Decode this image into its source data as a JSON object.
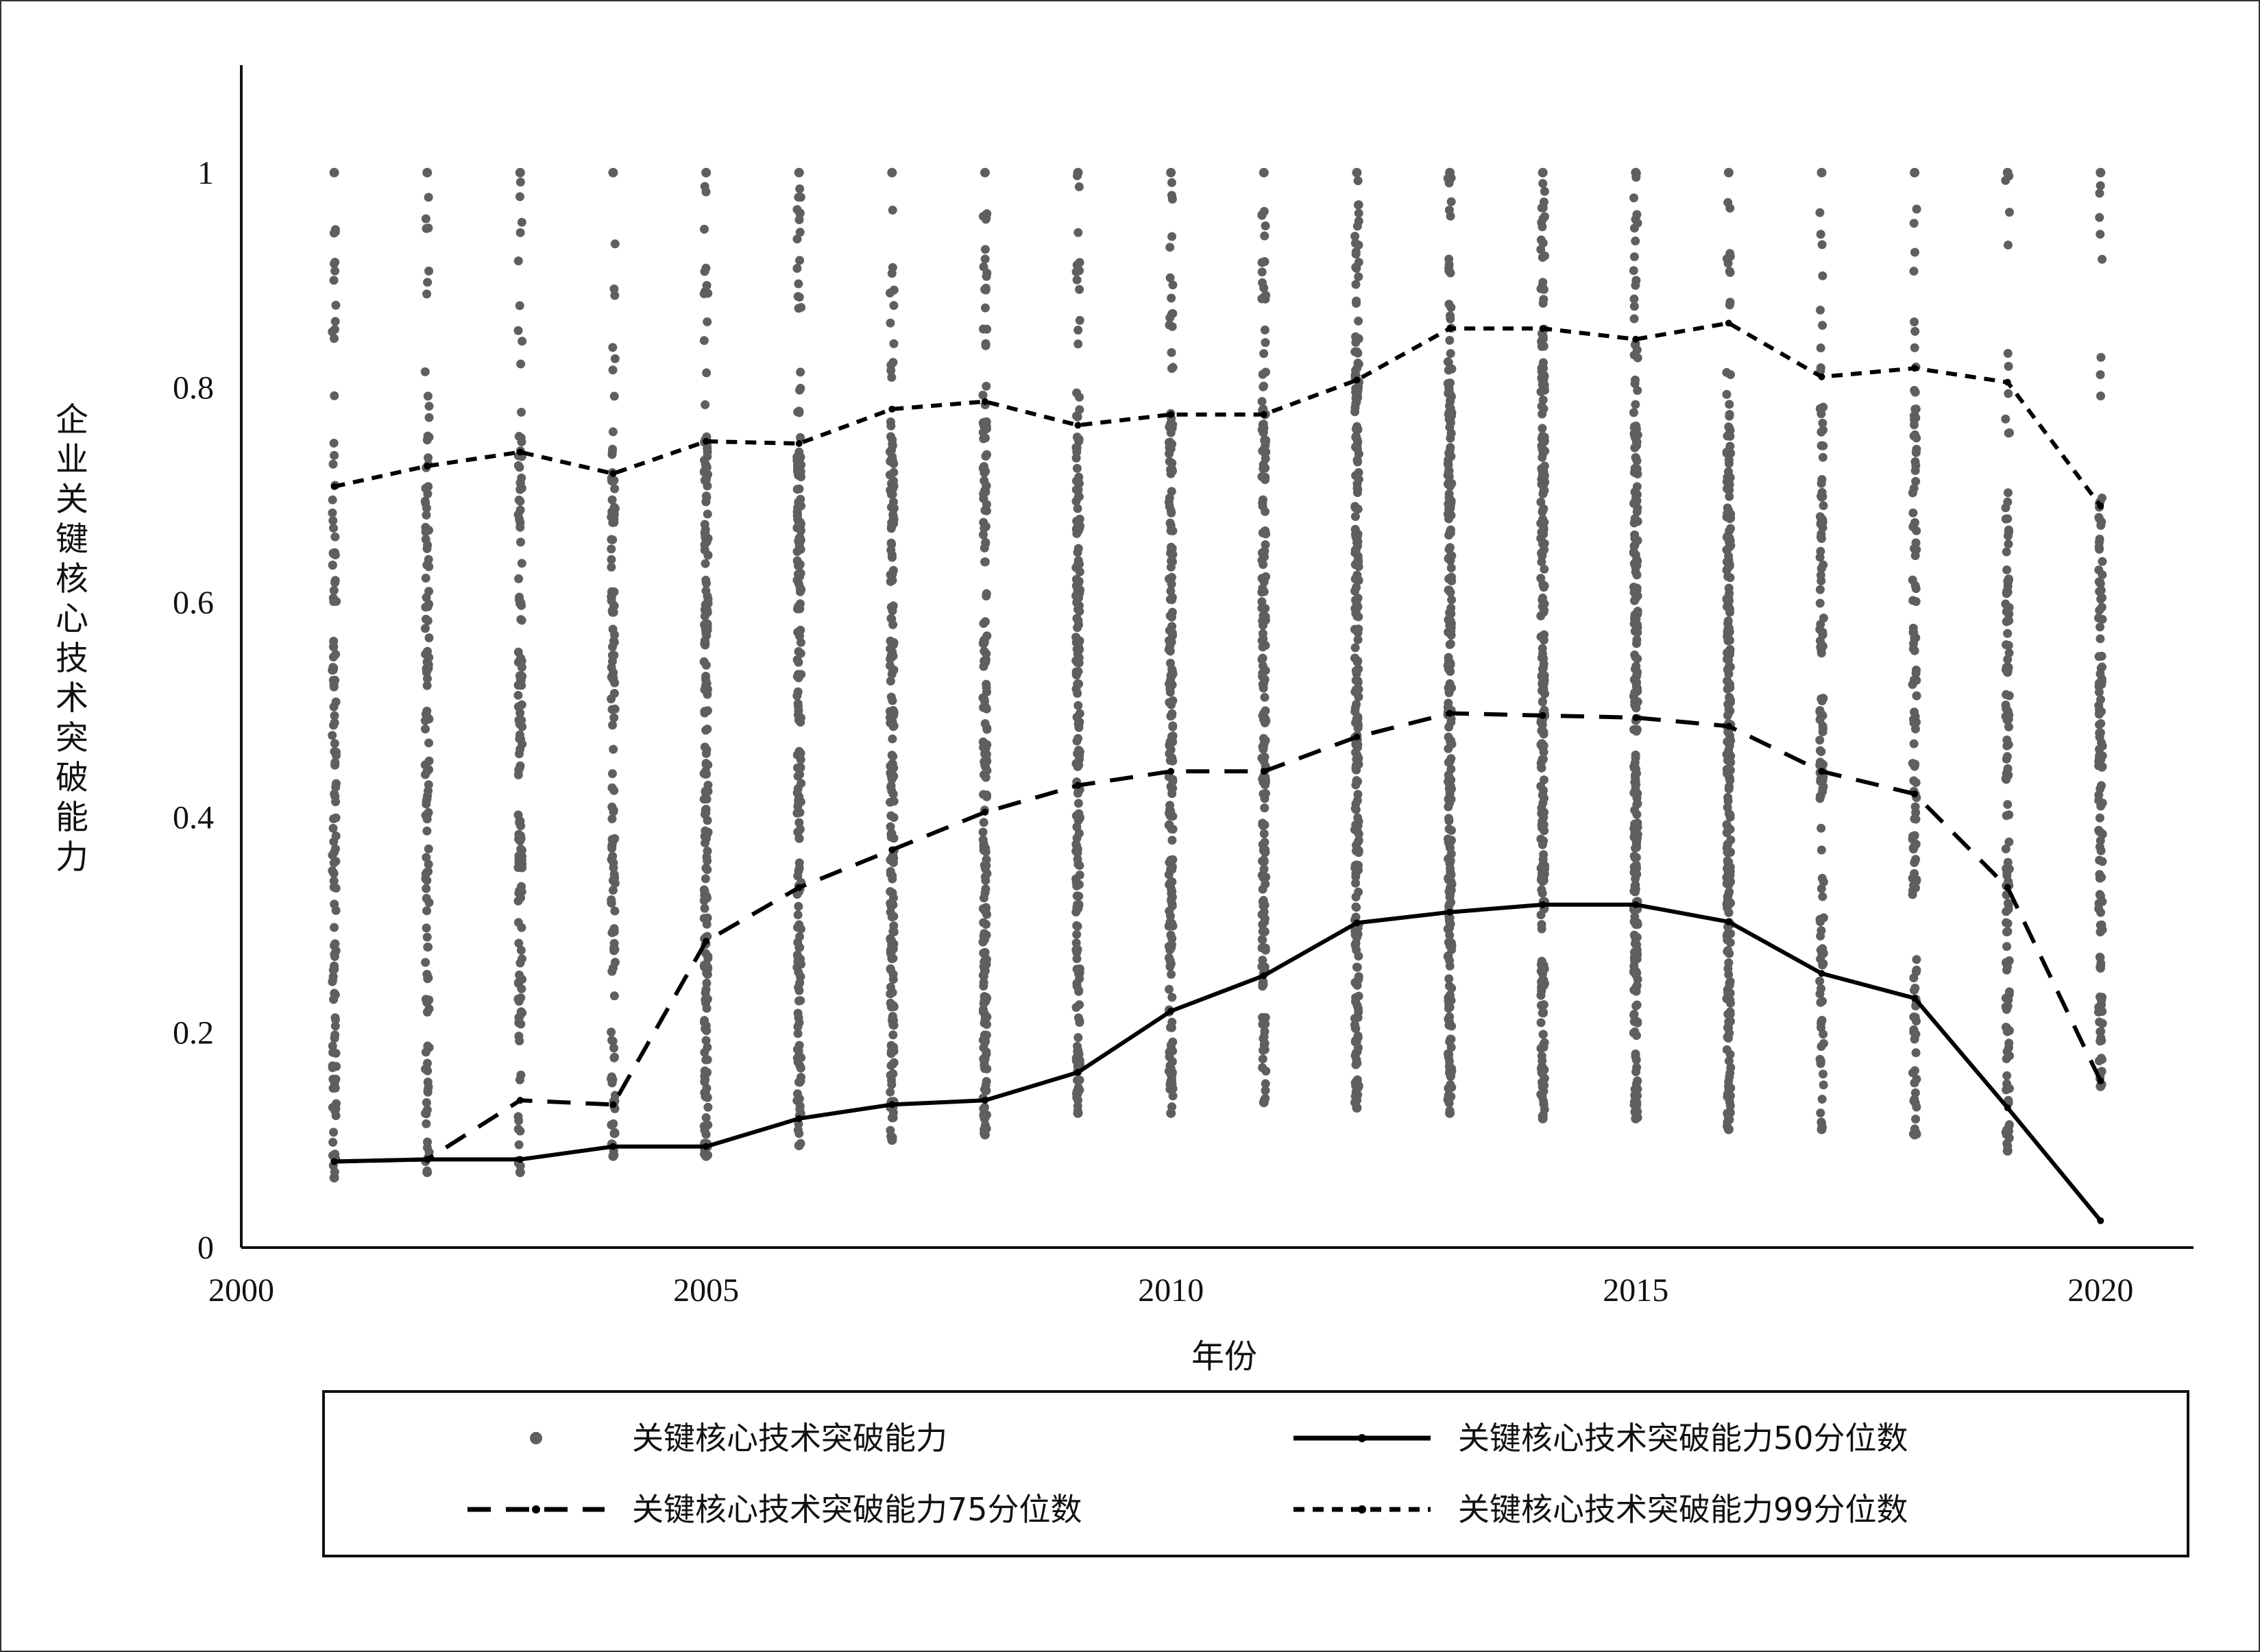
{
  "chart_data": {
    "type": "scatter",
    "title": "",
    "xlabel": "年份",
    "ylabel": "企业关键核心技术突破能力",
    "xlim": [
      2000,
      2021
    ],
    "ylim": [
      0,
      1.1
    ],
    "x_ticks": [
      "2000",
      "2005",
      "2010",
      "2015",
      "2020"
    ],
    "y_ticks": [
      "0",
      "0.2",
      "0.4",
      "0.6",
      "0.8",
      "1"
    ],
    "grid": false,
    "legend_position": "bottom",
    "years": [
      2001,
      2002,
      2003,
      2004,
      2005,
      2006,
      2007,
      2008,
      2009,
      2010,
      2011,
      2012,
      2013,
      2014,
      2015,
      2016,
      2017,
      2018,
      2019,
      2020
    ],
    "series": [
      {
        "name": "关键核心技术突破能力",
        "kind": "points",
        "color": "#5f5f5f",
        "min": [
          0.065,
          0.07,
          0.07,
          0.085,
          0.085,
          0.095,
          0.1,
          0.105,
          0.125,
          0.125,
          0.135,
          0.13,
          0.125,
          0.12,
          0.12,
          0.11,
          0.11,
          0.105,
          0.09,
          0.15
        ],
        "dense_top": [
          0.74,
          0.78,
          0.78,
          0.75,
          0.76,
          0.75,
          0.77,
          0.77,
          0.79,
          0.79,
          0.79,
          0.84,
          0.84,
          0.85,
          0.77,
          0.77,
          0.79,
          0.8,
          0.7,
          0.71
        ],
        "max": [
          1.0,
          1.0,
          1.0,
          1.0,
          1.0,
          1.0,
          1.0,
          1.0,
          1.0,
          1.0,
          1.0,
          1.0,
          1.0,
          1.0,
          1.0,
          1.0,
          1.0,
          1.0,
          1.0,
          1.0
        ]
      },
      {
        "name": "关键核心技术突破能力50分位数",
        "kind": "solid",
        "color": "#000000",
        "values": [
          0.08,
          0.082,
          0.082,
          0.094,
          0.094,
          0.12,
          0.133,
          0.137,
          0.163,
          0.22,
          0.253,
          0.302,
          0.312,
          0.319,
          0.319,
          0.303,
          0.255,
          0.232,
          0.13,
          0.025
        ]
      },
      {
        "name": "关键核心技术突破能力75分位数",
        "kind": "longdash",
        "color": "#000000",
        "values": [
          0.08,
          0.082,
          0.137,
          0.133,
          0.285,
          0.335,
          0.37,
          0.405,
          0.43,
          0.443,
          0.443,
          0.475,
          0.497,
          0.495,
          0.493,
          0.485,
          0.443,
          0.422,
          0.335,
          0.155
        ]
      },
      {
        "name": "关键核心技术突破能力99分位数",
        "kind": "shortdash",
        "color": "#000000",
        "values": [
          0.708,
          0.727,
          0.74,
          0.72,
          0.75,
          0.748,
          0.78,
          0.787,
          0.765,
          0.775,
          0.775,
          0.807,
          0.855,
          0.855,
          0.845,
          0.86,
          0.81,
          0.818,
          0.805,
          0.69
        ]
      }
    ]
  }
}
